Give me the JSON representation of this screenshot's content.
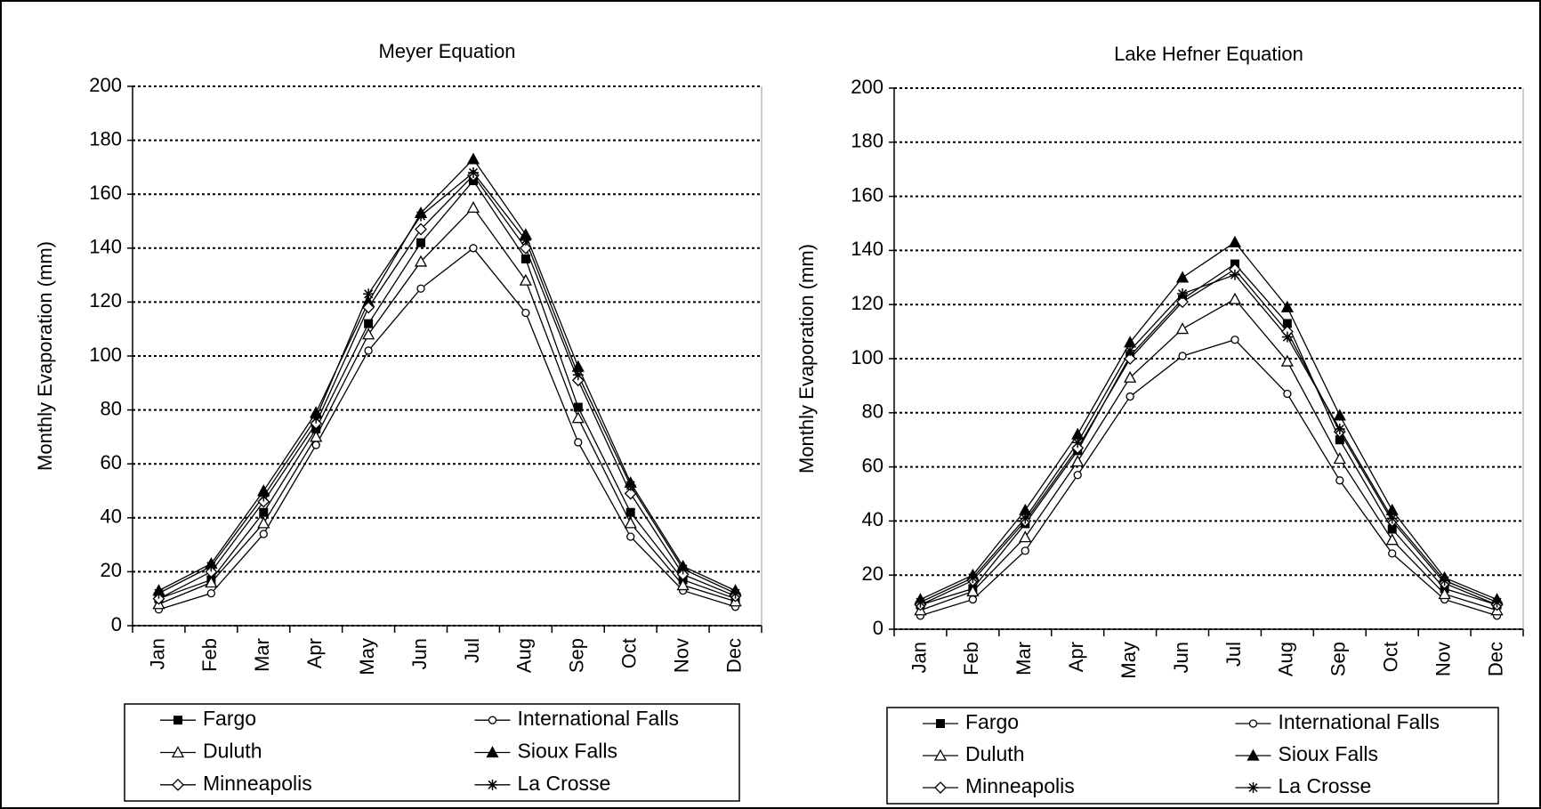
{
  "chart_data": [
    {
      "type": "line",
      "title": "Meyer Equation",
      "y_label": "Monthly Evaporation (mm)",
      "categories": [
        "Jan",
        "Feb",
        "Mar",
        "Apr",
        "May",
        "Jun",
        "Jul",
        "Aug",
        "Sep",
        "Oct",
        "Nov",
        "Dec"
      ],
      "ylim": [
        0,
        200
      ],
      "yticks": [
        0,
        20,
        40,
        60,
        80,
        100,
        120,
        140,
        160,
        180,
        200
      ],
      "grid": true,
      "series": [
        {
          "name": "Fargo",
          "color": "#000000",
          "marker": "square",
          "values": [
            10,
            17,
            42,
            73,
            112,
            142,
            165,
            136,
            81,
            42,
            17,
            10
          ]
        },
        {
          "name": "International Falls",
          "color": "#000000",
          "marker": "circle",
          "values": [
            6,
            12,
            34,
            67,
            102,
            125,
            140,
            116,
            68,
            33,
            13,
            7
          ]
        },
        {
          "name": "Duluth",
          "color": "#000000",
          "marker": "triangle-open",
          "values": [
            8,
            16,
            38,
            70,
            108,
            135,
            155,
            128,
            77,
            38,
            15,
            9
          ]
        },
        {
          "name": "Sioux Falls",
          "color": "#000000",
          "marker": "triangle",
          "values": [
            13,
            23,
            50,
            79,
            120,
            153,
            173,
            145,
            96,
            53,
            22,
            13
          ]
        },
        {
          "name": "Minneapolis",
          "color": "#000000",
          "marker": "diamond",
          "values": [
            10,
            20,
            46,
            75,
            118,
            147,
            167,
            140,
            91,
            49,
            19,
            11
          ]
        },
        {
          "name": "La Crosse",
          "color": "#000000",
          "marker": "asterisk",
          "values": [
            12,
            22,
            48,
            77,
            123,
            152,
            168,
            143,
            93,
            52,
            21,
            12
          ]
        }
      ]
    },
    {
      "type": "line",
      "title": "Lake Hefner Equation",
      "y_label": "Monthly Evaporation (mm)",
      "categories": [
        "Jan",
        "Feb",
        "Mar",
        "Apr",
        "May",
        "Jun",
        "Jul",
        "Aug",
        "Sep",
        "Oct",
        "Nov",
        "Dec"
      ],
      "ylim": [
        0,
        200
      ],
      "yticks": [
        0,
        20,
        40,
        60,
        80,
        100,
        120,
        140,
        160,
        180,
        200
      ],
      "grid": true,
      "series": [
        {
          "name": "Fargo",
          "color": "#000000",
          "marker": "square",
          "values": [
            9,
            15,
            39,
            66,
            101,
            122,
            135,
            113,
            70,
            37,
            15,
            9
          ]
        },
        {
          "name": "International Falls",
          "color": "#000000",
          "marker": "circle",
          "values": [
            5,
            11,
            29,
            57,
            86,
            101,
            107,
            87,
            55,
            28,
            11,
            5
          ]
        },
        {
          "name": "Duluth",
          "color": "#000000",
          "marker": "triangle-open",
          "values": [
            7,
            14,
            34,
            62,
            93,
            111,
            122,
            99,
            63,
            33,
            13,
            7
          ]
        },
        {
          "name": "Sioux Falls",
          "color": "#000000",
          "marker": "triangle",
          "values": [
            11,
            20,
            44,
            72,
            106,
            130,
            143,
            119,
            79,
            44,
            19,
            11
          ]
        },
        {
          "name": "Minneapolis",
          "color": "#000000",
          "marker": "diamond",
          "values": [
            9,
            18,
            40,
            67,
            100,
            121,
            133,
            110,
            73,
            40,
            17,
            9
          ]
        },
        {
          "name": "La Crosse",
          "color": "#000000",
          "marker": "asterisk",
          "values": [
            10,
            19,
            41,
            69,
            103,
            124,
            131,
            108,
            74,
            41,
            18,
            10
          ]
        }
      ]
    }
  ]
}
